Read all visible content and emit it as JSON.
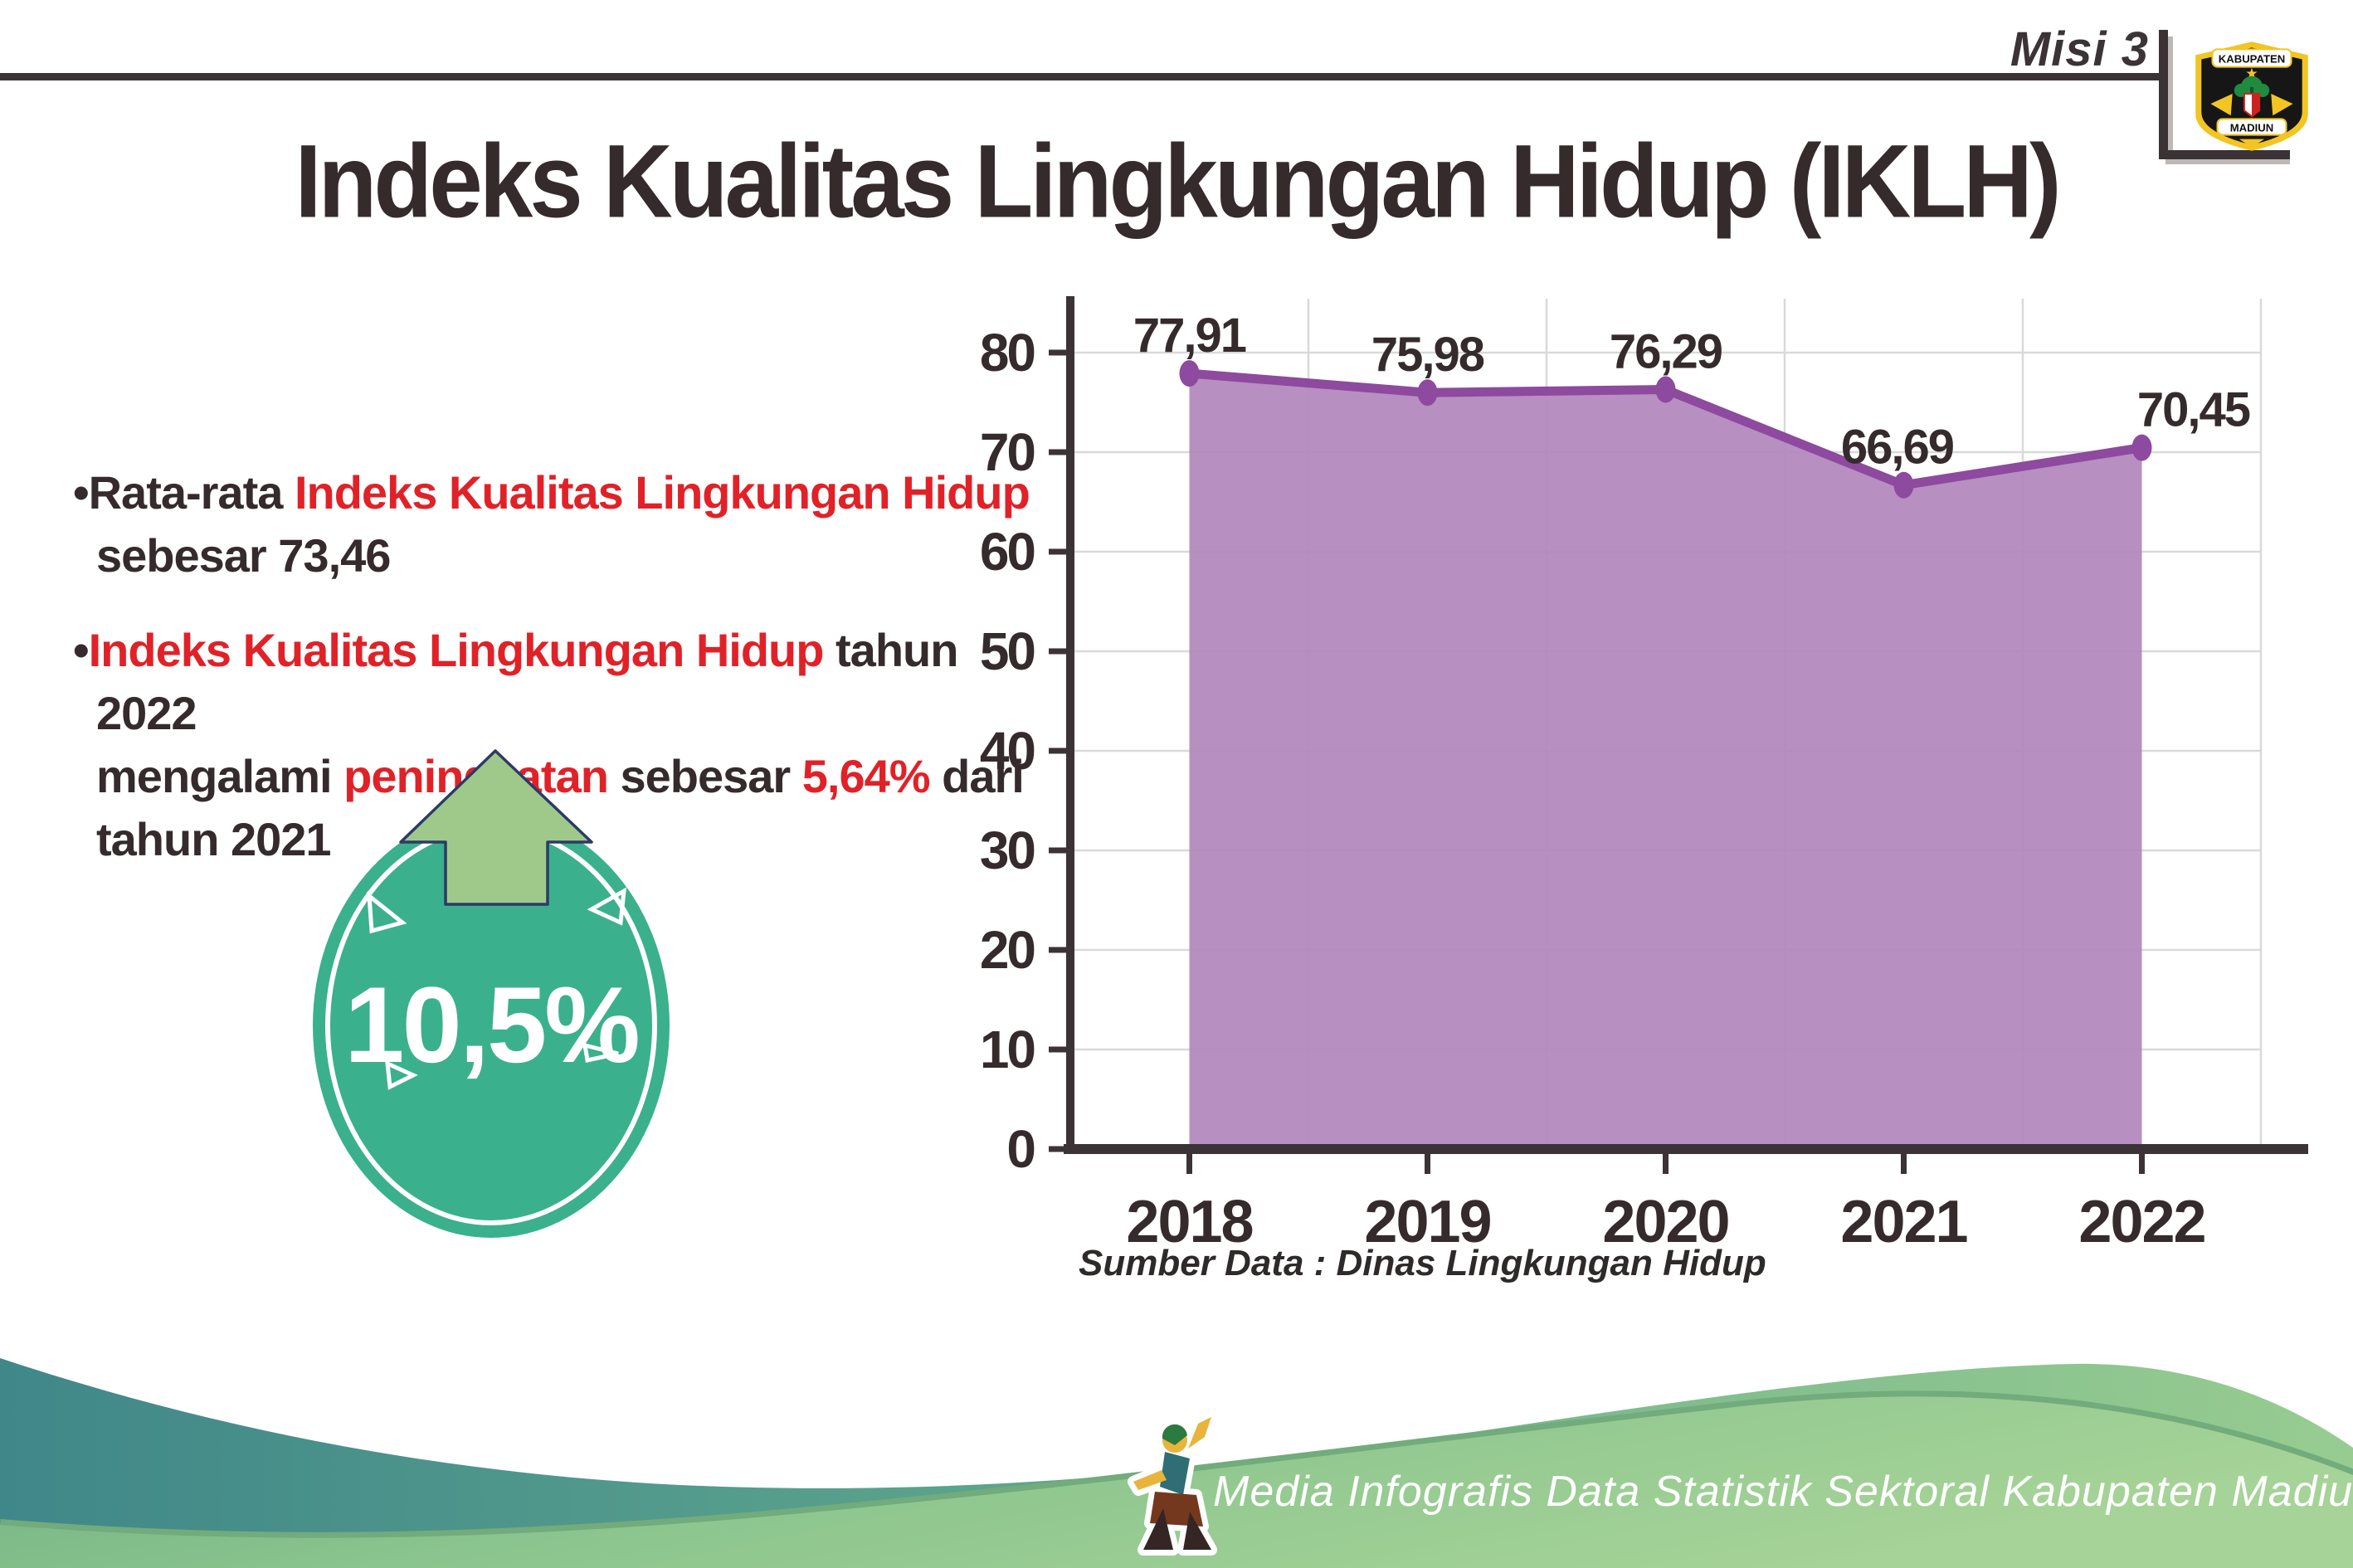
{
  "header": {
    "misi_label": "Misi 3",
    "logo": {
      "top_text": "KABUPATEN",
      "bottom_text": "MADIUN"
    }
  },
  "title": "Indeks Kualitas Lingkungan Hidup (IKLH)",
  "bullets": [
    {
      "segments": [
        {
          "text": "Rata-rata ",
          "color": "dark"
        },
        {
          "text": "Indeks Kualitas Lingkungan Hidup",
          "color": "red"
        },
        {
          "text": "sebesar 73,46",
          "color": "dark",
          "br": true
        }
      ]
    },
    {
      "segments": [
        {
          "text": "Indeks Kualitas Lingkungan Hidup",
          "color": "red"
        },
        {
          "text": " tahun 2022",
          "color": "dark"
        },
        {
          "text": "mengalami ",
          "color": "dark",
          "br": true
        },
        {
          "text": "peningkatan",
          "color": "red"
        },
        {
          "text": " sebesar ",
          "color": "dark"
        },
        {
          "text": "5,64%",
          "color": "red"
        },
        {
          "text": " dari",
          "color": "dark"
        },
        {
          "text": "tahun 2021",
          "color": "dark",
          "br": true
        }
      ]
    }
  ],
  "badge": {
    "value": "10,5%",
    "direction": "up"
  },
  "chart_data": {
    "type": "area",
    "categories": [
      "2018",
      "2019",
      "2020",
      "2021",
      "2022"
    ],
    "values": [
      77.91,
      75.98,
      76.29,
      66.69,
      70.45
    ],
    "value_labels": [
      "77,91",
      "75,98",
      "76,29",
      "66,69",
      "70,45"
    ],
    "title": "",
    "xlabel": "",
    "ylabel": "",
    "ylim": [
      0,
      85
    ],
    "yticks": [
      0,
      10,
      20,
      30,
      40,
      50,
      60,
      70,
      80
    ],
    "grid": true,
    "legend": "none",
    "area_color": "#b287bc",
    "line_color": "#8d4a9e",
    "grid_color": "#d9d9d9",
    "axis_color": "#3b3335"
  },
  "source_note": "Sumber Data : Dinas Lingkungan Hidup",
  "footer": {
    "caption": "Media Infografis Data Statistik Sektoral Kabupaten Madiun |"
  },
  "colors": {
    "accent_red": "#e02228",
    "text_dark": "#352b2c",
    "badge_teal": "#3bb08d",
    "arrow_green": "#9ec98b",
    "arrow_outline": "#2d3a66",
    "wave_teal": "#40878a",
    "wave_green": "#8dc68f"
  }
}
